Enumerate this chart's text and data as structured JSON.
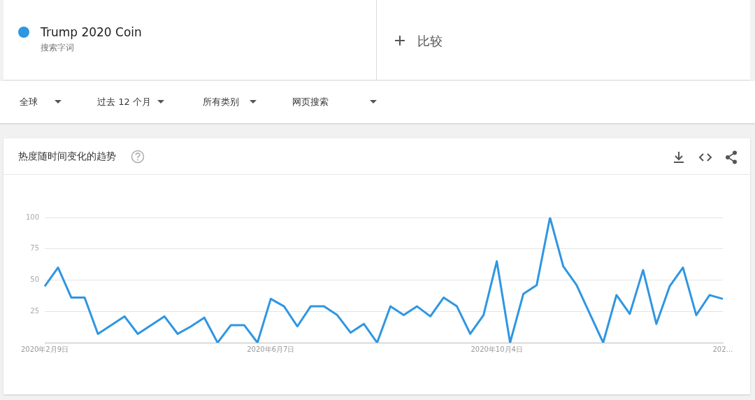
{
  "chart_data": {
    "type": "line",
    "title": "热度随时间变化的趋势",
    "categories": [
      "2020年2月9日",
      null,
      null,
      null,
      null,
      null,
      null,
      null,
      null,
      null,
      null,
      null,
      null,
      null,
      null,
      null,
      null,
      "2020年6月7日",
      null,
      null,
      null,
      null,
      null,
      null,
      null,
      null,
      null,
      null,
      null,
      null,
      null,
      null,
      null,
      null,
      "2020年10月4日",
      null,
      null,
      null,
      null,
      null,
      null,
      null,
      null,
      null,
      null,
      null,
      null,
      null,
      null,
      null,
      null,
      "202…"
    ],
    "series": [
      {
        "name": "Trump 2020 Coin",
        "color": "#2f96e2",
        "values": [
          45,
          60,
          36,
          36,
          7,
          14,
          21,
          7,
          14,
          21,
          7,
          13,
          20,
          0,
          14,
          14,
          0,
          35,
          29,
          13,
          29,
          29,
          22,
          8,
          15,
          0,
          29,
          22,
          29,
          21,
          36,
          29,
          7,
          22,
          65,
          0,
          39,
          46,
          100,
          61,
          46,
          23,
          0,
          38,
          23,
          58,
          15,
          45,
          60,
          22,
          38,
          35
        ]
      }
    ],
    "ylim": [
      0,
      100
    ],
    "yticks": [
      {
        "value": 0,
        "label": null
      },
      25,
      50,
      75,
      100
    ],
    "grid": "y",
    "legend": "top left",
    "marker": "none",
    "line_style": "solid",
    "annotations": [
      "搜索字词",
      "比较",
      "全球",
      "过去 12 个月",
      "所有类别",
      "网页搜索"
    ]
  }
}
